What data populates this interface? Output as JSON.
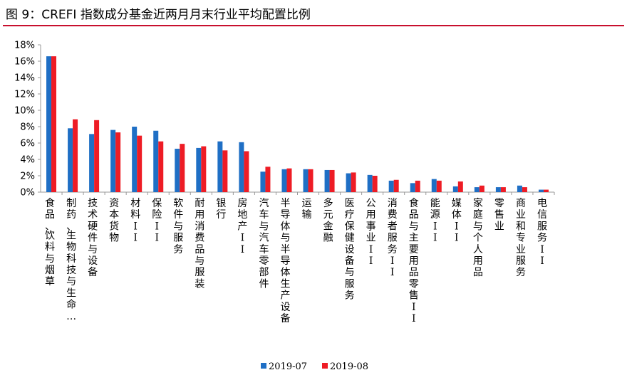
{
  "title": "图 9：CREFI 指数成分基金近两月月末行业平均配置比例",
  "colors": {
    "title_rule": "#c8102e",
    "series_1": "#1f6fc5",
    "series_2": "#ee1c25",
    "axis": "#999999"
  },
  "chart_data": {
    "type": "bar",
    "ylim": [
      0,
      18
    ],
    "yticks": [
      "0%",
      "2%",
      "4%",
      "6%",
      "8%",
      "10%",
      "12%",
      "14%",
      "16%",
      "18%"
    ],
    "categories": [
      "食品、饮料与烟草",
      "制药、生物科技与生命…",
      "技术硬件与设备",
      "资本货物",
      "材料II",
      "保险II",
      "软件与服务",
      "耐用消费品与服装",
      "银行",
      "房地产II",
      "汽车与汽车零部件",
      "半导体与半导体生产设备",
      "运输",
      "多元金融",
      "医疗保健设备与服务",
      "公用事业II",
      "消费者服务II",
      "食品与主要用品零售II",
      "能源II",
      "媒体II",
      "家庭与个人用品",
      "零售业",
      "商业和专业服务",
      "电信服务II"
    ],
    "series": [
      {
        "name": "2019-07",
        "values": [
          16.6,
          7.8,
          7.1,
          7.6,
          8.0,
          7.5,
          5.3,
          5.4,
          6.2,
          6.1,
          2.5,
          2.8,
          2.8,
          2.7,
          2.3,
          2.1,
          1.4,
          1.1,
          1.6,
          0.7,
          0.6,
          0.6,
          0.8,
          0.3
        ]
      },
      {
        "name": "2019-08",
        "values": [
          16.6,
          8.9,
          8.8,
          7.3,
          6.9,
          6.2,
          5.9,
          5.6,
          5.1,
          5.0,
          3.1,
          2.9,
          2.8,
          2.7,
          2.4,
          2.0,
          1.5,
          1.4,
          1.4,
          1.3,
          0.8,
          0.6,
          0.6,
          0.3
        ]
      }
    ],
    "legend": "bottom-center",
    "grid": false
  }
}
